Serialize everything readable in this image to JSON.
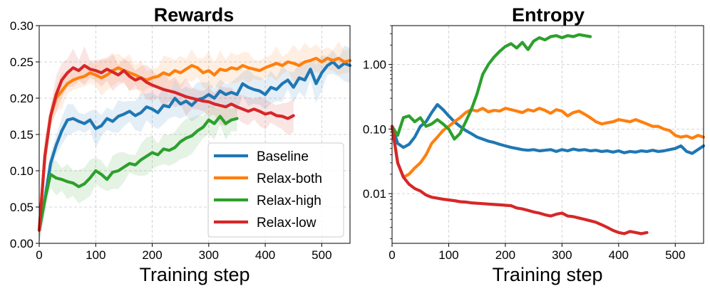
{
  "chart_data": [
    {
      "type": "line",
      "title": "Rewards",
      "xlabel": "Training step",
      "ylabel": "",
      "xlim": [
        0,
        550
      ],
      "ylim": [
        0,
        0.3
      ],
      "yscale": "linear",
      "xticks": [
        0,
        100,
        200,
        300,
        400,
        500
      ],
      "xtick_labels": [
        "0",
        "100",
        "200",
        "300",
        "400",
        "500"
      ],
      "yticks": [
        0,
        0.05,
        0.1,
        0.15,
        0.2,
        0.25,
        0.3
      ],
      "ytick_labels": [
        "0.00",
        "0.05",
        "0.10",
        "0.15",
        "0.20",
        "0.25",
        "0.30"
      ],
      "grid": true,
      "legend": "lower-right",
      "series": [
        {
          "name": "Baseline",
          "color": "#1f77b4",
          "x": [
            0,
            10,
            20,
            30,
            40,
            50,
            60,
            70,
            80,
            90,
            100,
            110,
            120,
            130,
            140,
            150,
            160,
            170,
            180,
            190,
            200,
            210,
            220,
            230,
            240,
            250,
            260,
            270,
            280,
            290,
            300,
            310,
            320,
            330,
            340,
            350,
            360,
            370,
            380,
            390,
            400,
            410,
            420,
            430,
            440,
            450,
            460,
            470,
            480,
            490,
            500,
            510,
            520,
            530,
            540,
            550
          ],
          "y": [
            0.018,
            0.06,
            0.11,
            0.135,
            0.155,
            0.17,
            0.172,
            0.168,
            0.165,
            0.17,
            0.158,
            0.162,
            0.172,
            0.168,
            0.175,
            0.178,
            0.182,
            0.176,
            0.18,
            0.188,
            0.185,
            0.18,
            0.19,
            0.188,
            0.2,
            0.192,
            0.196,
            0.19,
            0.198,
            0.2,
            0.205,
            0.2,
            0.21,
            0.205,
            0.208,
            0.205,
            0.22,
            0.215,
            0.212,
            0.21,
            0.205,
            0.215,
            0.212,
            0.22,
            0.225,
            0.215,
            0.228,
            0.225,
            0.24,
            0.22,
            0.235,
            0.245,
            0.25,
            0.242,
            0.248,
            0.245
          ]
        },
        {
          "name": "Relax-both",
          "color": "#ff7f0e",
          "x": [
            0,
            10,
            20,
            30,
            40,
            50,
            60,
            70,
            80,
            90,
            100,
            110,
            120,
            130,
            140,
            150,
            160,
            170,
            180,
            190,
            200,
            210,
            220,
            230,
            240,
            250,
            260,
            270,
            280,
            290,
            300,
            310,
            320,
            330,
            340,
            350,
            360,
            370,
            380,
            390,
            400,
            410,
            420,
            430,
            440,
            450,
            460,
            470,
            480,
            490,
            500,
            510,
            520,
            530,
            540,
            550
          ],
          "y": [
            0.018,
            0.12,
            0.175,
            0.2,
            0.21,
            0.22,
            0.225,
            0.228,
            0.23,
            0.235,
            0.232,
            0.228,
            0.232,
            0.238,
            0.242,
            0.238,
            0.235,
            0.232,
            0.228,
            0.225,
            0.228,
            0.23,
            0.235,
            0.232,
            0.238,
            0.235,
            0.24,
            0.245,
            0.242,
            0.235,
            0.238,
            0.232,
            0.24,
            0.238,
            0.242,
            0.24,
            0.245,
            0.242,
            0.24,
            0.238,
            0.242,
            0.245,
            0.248,
            0.245,
            0.25,
            0.248,
            0.245,
            0.25,
            0.252,
            0.255,
            0.25,
            0.255,
            0.252,
            0.255,
            0.25,
            0.252
          ]
        },
        {
          "name": "Relax-high",
          "color": "#2ca02c",
          "x": [
            0,
            10,
            20,
            30,
            40,
            50,
            60,
            70,
            80,
            90,
            100,
            110,
            120,
            130,
            140,
            150,
            160,
            170,
            180,
            190,
            200,
            210,
            220,
            230,
            240,
            250,
            260,
            270,
            280,
            290,
            300,
            310,
            320,
            330,
            340,
            350
          ],
          "y": [
            0.018,
            0.06,
            0.095,
            0.09,
            0.088,
            0.085,
            0.083,
            0.078,
            0.082,
            0.09,
            0.1,
            0.095,
            0.088,
            0.098,
            0.1,
            0.105,
            0.11,
            0.108,
            0.115,
            0.12,
            0.125,
            0.122,
            0.13,
            0.128,
            0.132,
            0.14,
            0.145,
            0.148,
            0.155,
            0.16,
            0.17,
            0.165,
            0.175,
            0.165,
            0.17,
            0.172
          ]
        },
        {
          "name": "Relax-low",
          "color": "#d62728",
          "x": [
            0,
            10,
            20,
            30,
            40,
            50,
            60,
            70,
            80,
            90,
            100,
            110,
            120,
            130,
            140,
            150,
            160,
            170,
            180,
            190,
            200,
            210,
            220,
            230,
            240,
            250,
            260,
            270,
            280,
            290,
            300,
            310,
            320,
            330,
            340,
            350,
            360,
            370,
            380,
            390,
            400,
            410,
            420,
            430,
            440,
            450
          ],
          "y": [
            0.018,
            0.12,
            0.175,
            0.205,
            0.225,
            0.235,
            0.242,
            0.238,
            0.245,
            0.24,
            0.238,
            0.235,
            0.24,
            0.236,
            0.232,
            0.238,
            0.23,
            0.225,
            0.228,
            0.222,
            0.218,
            0.215,
            0.212,
            0.21,
            0.208,
            0.205,
            0.202,
            0.2,
            0.198,
            0.196,
            0.195,
            0.192,
            0.19,
            0.188,
            0.192,
            0.188,
            0.185,
            0.182,
            0.185,
            0.182,
            0.178,
            0.18,
            0.176,
            0.175,
            0.172,
            0.176
          ]
        }
      ]
    },
    {
      "type": "line",
      "title": "Entropy",
      "xlabel": "Training step",
      "ylabel": "",
      "xlim": [
        0,
        550
      ],
      "ylim": [
        0.0017,
        4.0
      ],
      "yscale": "log",
      "xticks": [
        0,
        100,
        200,
        300,
        400,
        500
      ],
      "xtick_labels": [
        "0",
        "100",
        "200",
        "300",
        "400",
        "500"
      ],
      "yticks": [
        0.01,
        0.1,
        1.0
      ],
      "ytick_labels": [
        "0.01",
        "0.10",
        "1.00"
      ],
      "grid": true,
      "series": [
        {
          "name": "Baseline",
          "color": "#1f77b4",
          "x": [
            0,
            10,
            20,
            30,
            40,
            50,
            60,
            70,
            80,
            90,
            100,
            110,
            120,
            130,
            140,
            150,
            160,
            170,
            180,
            190,
            200,
            210,
            220,
            230,
            240,
            250,
            260,
            270,
            280,
            290,
            300,
            310,
            320,
            330,
            340,
            350,
            360,
            370,
            380,
            390,
            400,
            410,
            420,
            430,
            440,
            450,
            460,
            470,
            480,
            490,
            500,
            510,
            520,
            530,
            540,
            550
          ],
          "y": [
            0.11,
            0.06,
            0.052,
            0.058,
            0.075,
            0.11,
            0.13,
            0.18,
            0.24,
            0.2,
            0.16,
            0.13,
            0.11,
            0.095,
            0.085,
            0.075,
            0.07,
            0.065,
            0.062,
            0.058,
            0.055,
            0.052,
            0.05,
            0.048,
            0.047,
            0.048,
            0.046,
            0.047,
            0.048,
            0.045,
            0.048,
            0.046,
            0.049,
            0.047,
            0.048,
            0.046,
            0.047,
            0.045,
            0.046,
            0.044,
            0.046,
            0.043,
            0.045,
            0.044,
            0.046,
            0.045,
            0.047,
            0.045,
            0.046,
            0.048,
            0.05,
            0.055,
            0.045,
            0.042,
            0.048,
            0.055
          ]
        },
        {
          "name": "Relax-both",
          "color": "#ff7f0e",
          "x": [
            0,
            10,
            20,
            30,
            40,
            50,
            60,
            70,
            80,
            90,
            100,
            110,
            120,
            130,
            140,
            150,
            160,
            170,
            180,
            190,
            200,
            210,
            220,
            230,
            240,
            250,
            260,
            270,
            280,
            290,
            300,
            310,
            320,
            330,
            340,
            350,
            360,
            370,
            380,
            390,
            400,
            410,
            420,
            430,
            440,
            450,
            460,
            470,
            480,
            490,
            500,
            510,
            520,
            530,
            540,
            550
          ],
          "y": [
            0.11,
            0.03,
            0.018,
            0.02,
            0.025,
            0.03,
            0.04,
            0.06,
            0.075,
            0.095,
            0.11,
            0.13,
            0.15,
            0.18,
            0.2,
            0.19,
            0.21,
            0.185,
            0.195,
            0.19,
            0.21,
            0.2,
            0.19,
            0.18,
            0.2,
            0.19,
            0.21,
            0.195,
            0.175,
            0.2,
            0.19,
            0.16,
            0.18,
            0.19,
            0.17,
            0.15,
            0.13,
            0.12,
            0.125,
            0.13,
            0.14,
            0.135,
            0.13,
            0.14,
            0.13,
            0.12,
            0.11,
            0.11,
            0.1,
            0.095,
            0.08,
            0.075,
            0.078,
            0.072,
            0.08,
            0.075
          ]
        },
        {
          "name": "Relax-high",
          "color": "#2ca02c",
          "x": [
            0,
            10,
            20,
            30,
            40,
            50,
            60,
            70,
            80,
            90,
            100,
            110,
            120,
            130,
            140,
            150,
            160,
            170,
            180,
            190,
            200,
            210,
            220,
            230,
            240,
            250,
            260,
            270,
            280,
            290,
            300,
            310,
            320,
            330,
            340,
            350
          ],
          "y": [
            0.11,
            0.08,
            0.15,
            0.16,
            0.13,
            0.15,
            0.11,
            0.12,
            0.14,
            0.12,
            0.1,
            0.07,
            0.085,
            0.13,
            0.2,
            0.35,
            0.7,
            1.0,
            1.3,
            1.6,
            1.9,
            2.1,
            1.8,
            2.2,
            1.7,
            2.3,
            2.6,
            2.4,
            2.7,
            2.8,
            2.6,
            2.8,
            2.7,
            2.9,
            2.8,
            2.7
          ]
        },
        {
          "name": "Relax-low",
          "color": "#d62728",
          "x": [
            0,
            10,
            20,
            30,
            40,
            50,
            60,
            70,
            80,
            90,
            100,
            110,
            120,
            130,
            140,
            150,
            160,
            170,
            180,
            190,
            200,
            210,
            220,
            230,
            240,
            250,
            260,
            270,
            280,
            290,
            300,
            310,
            320,
            330,
            340,
            350,
            360,
            370,
            380,
            390,
            400,
            410,
            420,
            430,
            440,
            450
          ],
          "y": [
            0.11,
            0.03,
            0.018,
            0.014,
            0.012,
            0.011,
            0.0095,
            0.0088,
            0.0085,
            0.0082,
            0.008,
            0.0078,
            0.0075,
            0.0074,
            0.0072,
            0.0071,
            0.007,
            0.0069,
            0.0068,
            0.0067,
            0.0066,
            0.0065,
            0.006,
            0.0058,
            0.0055,
            0.0052,
            0.005,
            0.0047,
            0.0045,
            0.0048,
            0.005,
            0.0045,
            0.0044,
            0.0042,
            0.004,
            0.0038,
            0.0036,
            0.0033,
            0.003,
            0.0027,
            0.0025,
            0.0024,
            0.0026,
            0.0025,
            0.0024,
            0.0025
          ]
        }
      ]
    }
  ]
}
